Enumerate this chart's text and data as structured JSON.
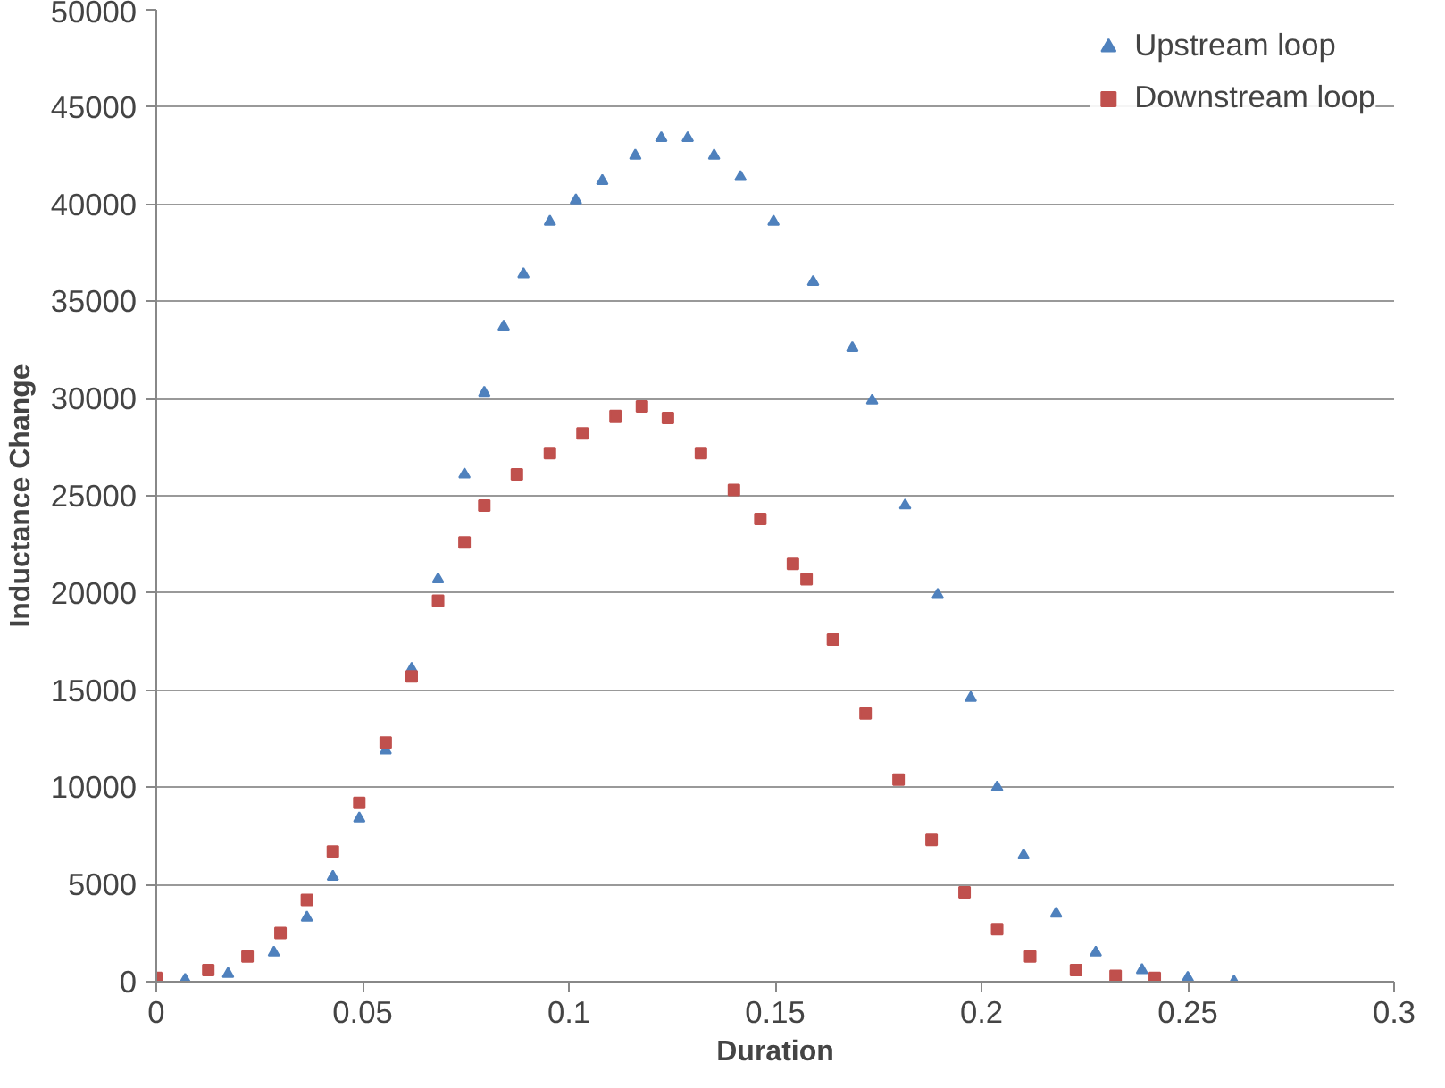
{
  "chart_data": {
    "type": "scatter",
    "xlabel": "Duration",
    "ylabel": "Inductance Change",
    "xlim": [
      0,
      0.3
    ],
    "xticks": [
      0,
      0.05,
      0.1,
      0.15,
      0.2,
      0.25,
      0.3
    ],
    "ylim": [
      0,
      50000
    ],
    "yticks": [
      0,
      5000,
      10000,
      15000,
      20000,
      25000,
      30000,
      35000,
      40000,
      45000,
      50000
    ],
    "grid": "y",
    "legend": "top right",
    "series": [
      {
        "name": "Upstream loop",
        "color": "#4f81bd",
        "marker": "triangle",
        "x": [
          0.007,
          0.0174,
          0.0285,
          0.0365,
          0.0428,
          0.0492,
          0.0556,
          0.0619,
          0.0683,
          0.0747,
          0.0795,
          0.0842,
          0.089,
          0.0954,
          0.1017,
          0.1081,
          0.1161,
          0.1224,
          0.1288,
          0.1352,
          0.1416,
          0.1496,
          0.1592,
          0.1687,
          0.1735,
          0.1815,
          0.1894,
          0.1974,
          0.2038,
          0.2102,
          0.2181,
          0.2277,
          0.2389,
          0.25,
          0.2612
        ],
        "values": [
          100,
          400,
          1500,
          3300,
          5400,
          8400,
          11900,
          16100,
          20700,
          26100,
          30300,
          33700,
          36400,
          39100,
          40200,
          41200,
          42500,
          43400,
          43400,
          42500,
          41400,
          39100,
          36000,
          32600,
          29900,
          24500,
          19900,
          14600,
          10000,
          6500,
          3500,
          1500,
          600,
          200,
          0
        ]
      },
      {
        "name": "Downstream loop",
        "color": "#c0504d",
        "marker": "square",
        "x": [
          0,
          0.0126,
          0.0221,
          0.0301,
          0.0365,
          0.0428,
          0.0492,
          0.0556,
          0.0619,
          0.0683,
          0.0747,
          0.0795,
          0.0874,
          0.0954,
          0.1033,
          0.1113,
          0.1177,
          0.124,
          0.132,
          0.14,
          0.1464,
          0.1543,
          0.1576,
          0.164,
          0.1719,
          0.1799,
          0.1879,
          0.1959,
          0.2038,
          0.2118,
          0.2229,
          0.2325,
          0.242
        ],
        "values": [
          200,
          600,
          1300,
          2500,
          4200,
          6700,
          9200,
          12300,
          15700,
          19600,
          22600,
          24500,
          26100,
          27200,
          28200,
          29100,
          29600,
          29000,
          27200,
          25300,
          23800,
          21500,
          20700,
          17600,
          13800,
          10400,
          7300,
          4600,
          2700,
          1300,
          600,
          300,
          200
        ]
      }
    ]
  }
}
